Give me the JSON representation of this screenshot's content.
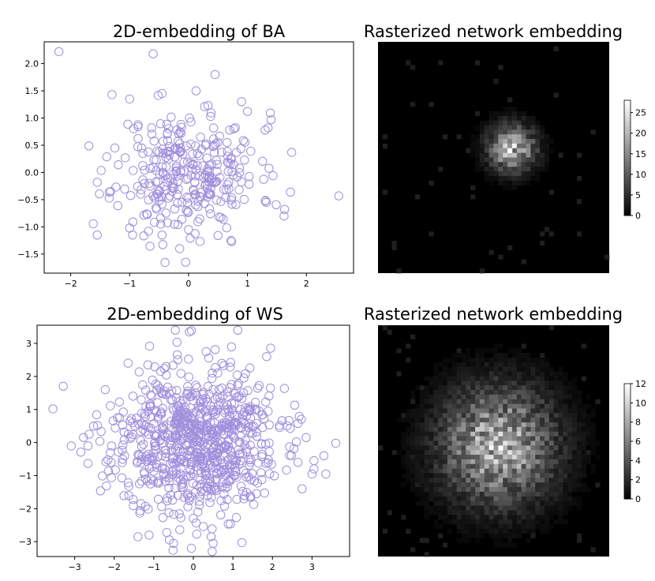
{
  "chart_data": [
    {
      "type": "scatter",
      "title": "2D-embedding of BA",
      "xlim": [
        -2.45,
        2.8
      ],
      "ylim": [
        -1.85,
        2.4
      ],
      "xticks": [
        -2,
        -1,
        0,
        1,
        2
      ],
      "yticks": [
        -1.5,
        -1.0,
        -0.5,
        0.0,
        0.5,
        1.0,
        1.5,
        2.0
      ],
      "ytick_labels": [
        "−1.5",
        "−1.0",
        "−0.5",
        "0.0",
        "0.5",
        "1.0",
        "1.5",
        "2.0"
      ],
      "xtick_labels": [
        "−2",
        "−1",
        "0",
        "1",
        "2"
      ],
      "marker": "hollow circle",
      "marker_color": "#9f8fdc",
      "n_points": 300,
      "spread": [
        0.6,
        0.55
      ],
      "seed": 11,
      "outliers": [
        [
          -2.2,
          2.22
        ],
        [
          -0.6,
          2.18
        ],
        [
          0.45,
          1.8
        ],
        [
          -0.45,
          1.45
        ],
        [
          -1.3,
          1.43
        ],
        [
          -1.0,
          1.35
        ],
        [
          0.33,
          1.23
        ],
        [
          0.9,
          1.3
        ],
        [
          1.0,
          1.12
        ],
        [
          2.55,
          -0.43
        ],
        [
          1.75,
          0.37
        ],
        [
          1.73,
          -0.36
        ],
        [
          1.62,
          -0.8
        ],
        [
          1.63,
          -0.68
        ],
        [
          -1.55,
          -1.15
        ],
        [
          -1.55,
          -0.18
        ],
        [
          -0.45,
          -1.15
        ],
        [
          -0.15,
          -1.4
        ],
        [
          -0.05,
          -1.65
        ],
        [
          0.72,
          -1.25
        ],
        [
          -0.68,
          -1.08
        ],
        [
          -0.95,
          -1.15
        ],
        [
          -1.0,
          -1.02
        ],
        [
          0.0,
          -1.05
        ],
        [
          -1.25,
          0.45
        ],
        [
          1.3,
          0.78
        ],
        [
          1.35,
          0.82
        ]
      ]
    },
    {
      "type": "heatmap",
      "title": "Rasterized network embedding",
      "colormap": "gray",
      "colorbar_ticks": [
        0,
        5,
        10,
        15,
        20,
        25
      ],
      "vmax": 28,
      "grid_size": 50,
      "center": [
        0.58,
        0.46
      ],
      "spread": 0.07,
      "peak": 28,
      "seed": 5
    },
    {
      "type": "scatter",
      "title": "2D-embedding of WS",
      "xlim": [
        -3.95,
        3.95
      ],
      "ylim": [
        -3.45,
        3.55
      ],
      "xticks": [
        -3,
        -2,
        -1,
        0,
        1,
        2,
        3
      ],
      "yticks": [
        -3,
        -2,
        -1,
        0,
        1,
        2,
        3
      ],
      "ytick_labels": [
        "−3",
        "−2",
        "−1",
        "0",
        "1",
        "2",
        "3"
      ],
      "xtick_labels": [
        "−3",
        "−2",
        "−1",
        "0",
        "1",
        "2",
        "3"
      ],
      "marker": "hollow circle",
      "marker_color": "#9f8fdc",
      "n_points": 800,
      "spread": [
        1.05,
        1.1
      ],
      "seed": 23,
      "outliers": [
        [
          -0.1,
          3.35
        ],
        [
          -3.55,
          1.02
        ],
        [
          3.6,
          -0.02
        ],
        [
          3.3,
          -0.4
        ],
        [
          3.05,
          -0.55
        ],
        [
          3.35,
          -0.95
        ],
        [
          3.0,
          -0.95
        ],
        [
          2.75,
          -1.4
        ],
        [
          2.85,
          0.15
        ],
        [
          -0.5,
          -3.05
        ],
        [
          0.5,
          -3.05
        ],
        [
          -0.05,
          -3.2
        ],
        [
          -1.4,
          -2.85
        ],
        [
          0.45,
          -2.85
        ],
        [
          -1.65,
          2.4
        ],
        [
          -1.15,
          2.35
        ]
      ]
    },
    {
      "type": "heatmap",
      "title": "Rasterized network embedding",
      "colormap": "gray",
      "colorbar_ticks": [
        0,
        2,
        4,
        6,
        8,
        10,
        12
      ],
      "vmax": 12,
      "grid_size": 50,
      "center": [
        0.52,
        0.52
      ],
      "spread": 0.17,
      "peak": 12,
      "seed": 9
    }
  ]
}
